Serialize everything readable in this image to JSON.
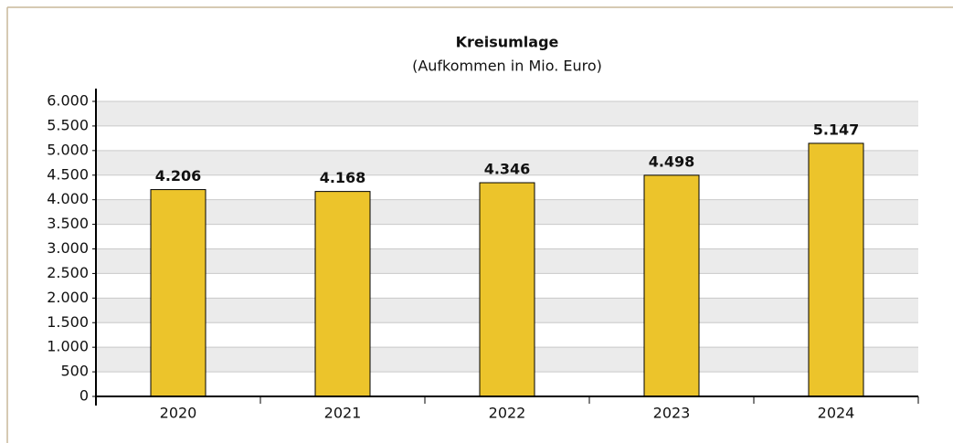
{
  "chart_data": {
    "type": "bar",
    "title": "Kreisumlage",
    "subtitle": "(Aufkommen in Mio. Euro)",
    "categories": [
      "2020",
      "2021",
      "2022",
      "2023",
      "2024"
    ],
    "values": [
      4206,
      4168,
      4346,
      4498,
      5147
    ],
    "value_labels": [
      "4.206",
      "4.168",
      "4.346",
      "4.498",
      "5.147"
    ],
    "color": "#ecc42b",
    "ylim": [
      0,
      6000
    ],
    "yticks": [
      0,
      500,
      {
        "value": 1000,
        "label": "1.000"
      },
      {
        "value": 1500,
        "label": "1.500"
      },
      {
        "value": 2000,
        "label": "2.000"
      },
      {
        "value": 2500,
        "label": "2.500"
      },
      {
        "value": 3000,
        "label": "3.000"
      },
      {
        "value": 3500,
        "label": "3.500"
      },
      {
        "value": 4000,
        "label": "4.000"
      },
      {
        "value": 4500,
        "label": "4.500"
      },
      {
        "value": 5000,
        "label": "5.000"
      },
      {
        "value": 5500,
        "label": "5.500"
      },
      {
        "value": 6000,
        "label": "6.000"
      }
    ],
    "grid": true
  }
}
